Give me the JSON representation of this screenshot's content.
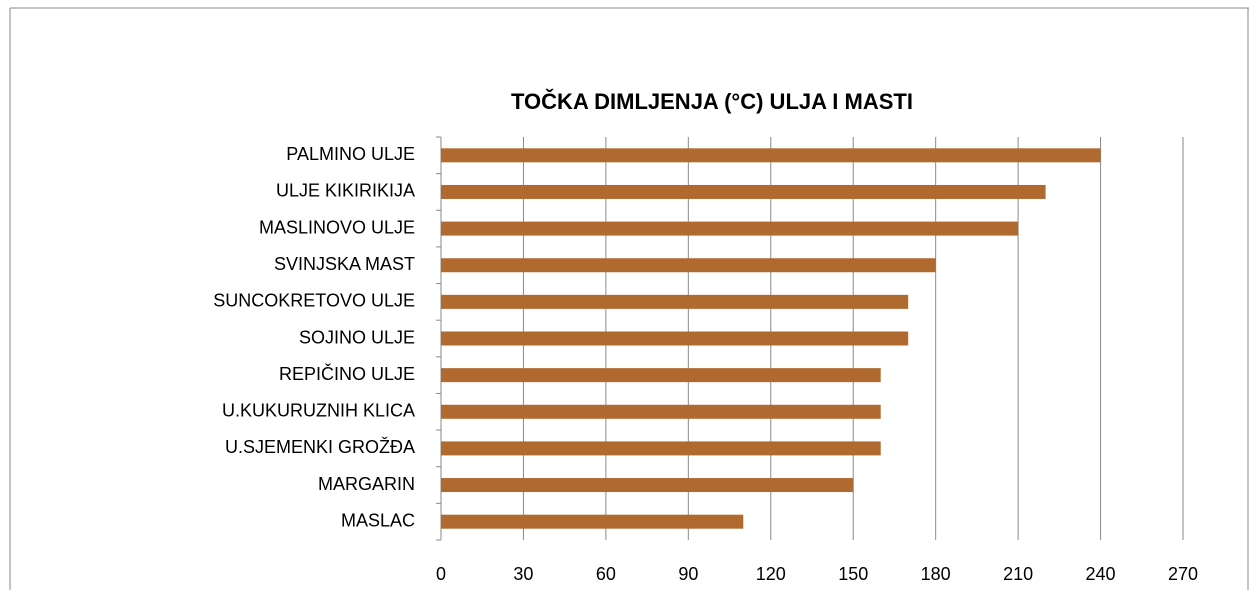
{
  "chart_data": {
    "type": "bar",
    "orientation": "horizontal",
    "title": "TOČKA DIMLJENJA (°C) ULJA I MASTI",
    "categories": [
      "PALMINO ULJE",
      "ULJE KIKIRIKIJA",
      "MASLINOVO ULJE",
      "SVINJSKA MAST",
      "SUNCOKRETOVO ULJE",
      "SOJINO ULJE",
      "REPIČINO ULJE",
      "U.KUKURUZNIH KLICA",
      "U.SJEMENKI GROŽĐA",
      "MARGARIN",
      "MASLAC"
    ],
    "values": [
      240,
      220,
      210,
      180,
      170,
      170,
      160,
      160,
      160,
      150,
      110
    ],
    "color": "#b0692f",
    "xlim": [
      0,
      270
    ],
    "xticks": [
      0,
      30,
      60,
      90,
      120,
      150,
      180,
      210,
      240,
      270
    ],
    "grid": true
  }
}
